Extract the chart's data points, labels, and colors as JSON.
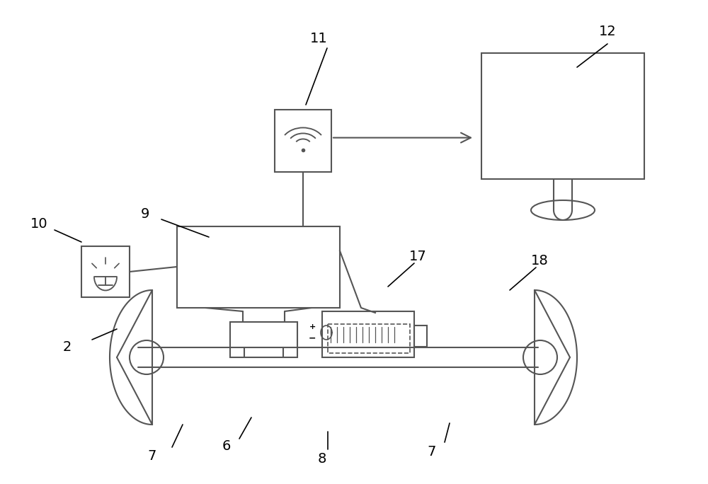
{
  "fig_w": 10.0,
  "fig_h": 6.84,
  "dpi": 100,
  "bg": "#ffffff",
  "lc": "#555555",
  "lw": 1.5,
  "labels": [
    [
      "2",
      95,
      490,
      130,
      480,
      165,
      465
    ],
    [
      "6",
      320,
      630,
      338,
      620,
      355,
      590
    ],
    [
      "7",
      215,
      645,
      243,
      632,
      258,
      600
    ],
    [
      "7",
      610,
      638,
      628,
      625,
      635,
      598
    ],
    [
      "8",
      455,
      648,
      463,
      635,
      463,
      610
    ],
    [
      "9",
      205,
      303,
      228,
      310,
      295,
      335
    ],
    [
      "10",
      55,
      316,
      77,
      325,
      115,
      342
    ],
    [
      "11",
      450,
      55,
      462,
      68,
      432,
      148
    ],
    [
      "12",
      858,
      45,
      858,
      62,
      815,
      95
    ],
    [
      "17",
      590,
      363,
      585,
      372,
      548,
      405
    ],
    [
      "18",
      762,
      368,
      757,
      378,
      720,
      410
    ]
  ]
}
